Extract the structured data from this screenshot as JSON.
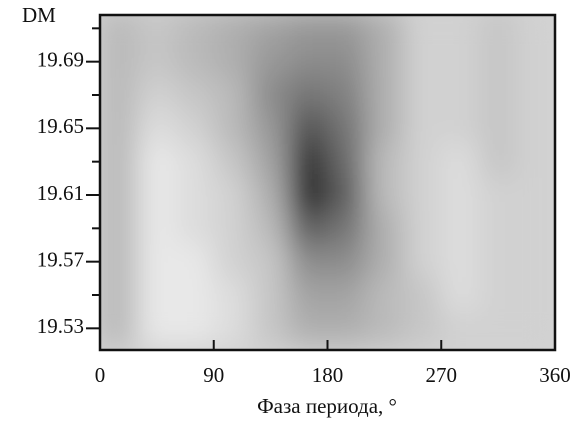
{
  "chart_data": {
    "type": "heatmap",
    "y_label": "DM",
    "x_label": "Фаза периода, °",
    "xlim": [
      0,
      360
    ],
    "xticks": [
      0,
      90,
      180,
      270,
      360
    ],
    "ylim": [
      19.517,
      19.718
    ],
    "yticks": [
      19.53,
      19.57,
      19.61,
      19.65,
      19.69
    ],
    "yminorticks": [
      19.55,
      19.59,
      19.63,
      19.67,
      19.71
    ],
    "x": [
      15,
      45,
      75,
      105,
      135,
      165,
      195,
      225,
      255,
      285,
      315,
      345
    ],
    "y": [
      19.71,
      19.69,
      19.67,
      19.65,
      19.63,
      19.61,
      19.59,
      19.57,
      19.55,
      19.53
    ],
    "z": [
      [
        0.3,
        0.25,
        0.3,
        0.35,
        0.4,
        0.45,
        0.45,
        0.35,
        0.2,
        0.2,
        0.25,
        0.2
      ],
      [
        0.3,
        0.25,
        0.3,
        0.35,
        0.45,
        0.5,
        0.5,
        0.35,
        0.2,
        0.2,
        0.25,
        0.2
      ],
      [
        0.3,
        0.2,
        0.25,
        0.3,
        0.5,
        0.6,
        0.55,
        0.35,
        0.2,
        0.2,
        0.25,
        0.2
      ],
      [
        0.3,
        0.15,
        0.2,
        0.3,
        0.45,
        0.75,
        0.6,
        0.35,
        0.2,
        0.2,
        0.25,
        0.2
      ],
      [
        0.3,
        0.1,
        0.15,
        0.25,
        0.4,
        0.9,
        0.65,
        0.3,
        0.2,
        0.15,
        0.25,
        0.2
      ],
      [
        0.3,
        0.1,
        0.15,
        0.2,
        0.35,
        0.95,
        0.7,
        0.3,
        0.2,
        0.15,
        0.2,
        0.2
      ],
      [
        0.3,
        0.1,
        0.15,
        0.2,
        0.3,
        0.7,
        0.6,
        0.35,
        0.2,
        0.15,
        0.2,
        0.2
      ],
      [
        0.3,
        0.1,
        0.1,
        0.2,
        0.25,
        0.5,
        0.5,
        0.35,
        0.2,
        0.15,
        0.2,
        0.2
      ],
      [
        0.3,
        0.1,
        0.1,
        0.15,
        0.25,
        0.4,
        0.4,
        0.3,
        0.25,
        0.15,
        0.2,
        0.2
      ],
      [
        0.3,
        0.1,
        0.1,
        0.15,
        0.25,
        0.35,
        0.35,
        0.3,
        0.25,
        0.2,
        0.2,
        0.2
      ]
    ]
  }
}
